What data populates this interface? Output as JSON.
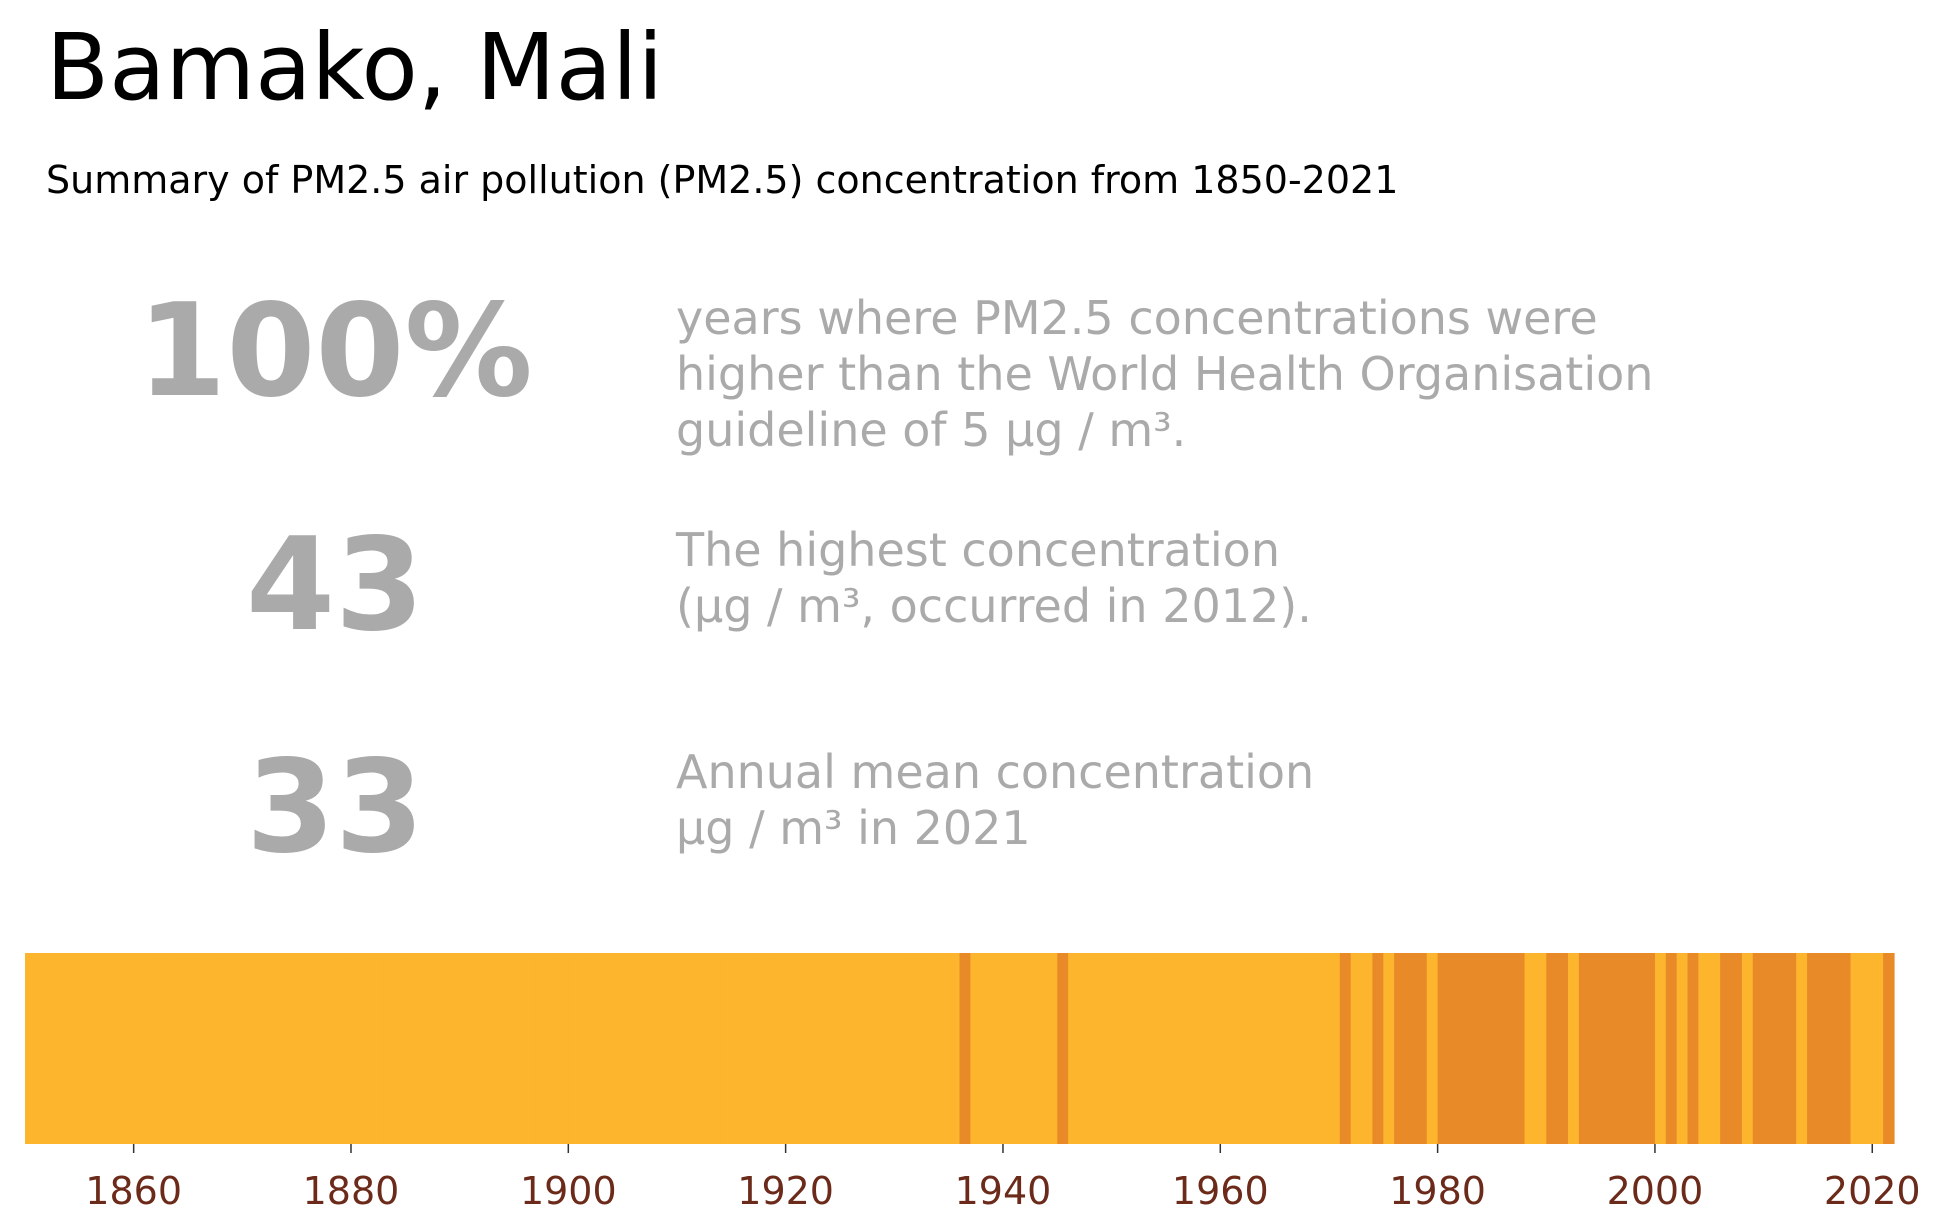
{
  "header": {
    "title": "Bamako, Mali",
    "subtitle": "Summary of PM2.5 air pollution (PM2.5) concentration from 1850-2021"
  },
  "stats": [
    {
      "value": "100%",
      "lines": [
        "years where PM2.5 concentrations were",
        "higher than the World Health Organisation",
        "guideline of 5 µg / m³."
      ]
    },
    {
      "value": "43",
      "lines": [
        "The highest concentration",
        "(µg / m³, occurred in 2012)."
      ]
    },
    {
      "value": "33",
      "lines": [
        "Annual mean concentration",
        "µg / m³ in 2021"
      ]
    }
  ],
  "colors": {
    "stat_text": "#aaaaaa",
    "tick_label": "#6b2a1a",
    "light": "#fcb52d",
    "dark": "#e88a28"
  },
  "chart_data": {
    "type": "heatmap",
    "title": "",
    "xlabel": "",
    "ylabel": "",
    "x_range": [
      1850,
      2022
    ],
    "x_ticks": [
      1860,
      1880,
      1900,
      1920,
      1940,
      1960,
      1980,
      2000,
      2020
    ],
    "grid": false,
    "base_color": "#fcb52d",
    "highlight_color": "#e88a28",
    "highlight_years": [
      1936,
      1945,
      1971,
      1974,
      1976,
      1977,
      1978,
      1980,
      1981,
      1982,
      1983,
      1984,
      1985,
      1986,
      1987,
      1990,
      1991,
      1993,
      1994,
      1995,
      1996,
      1997,
      1998,
      1999,
      2001,
      2003,
      2006,
      2007,
      2009,
      2010,
      2011,
      2012,
      2014,
      2015,
      2016,
      2017,
      2021
    ]
  }
}
